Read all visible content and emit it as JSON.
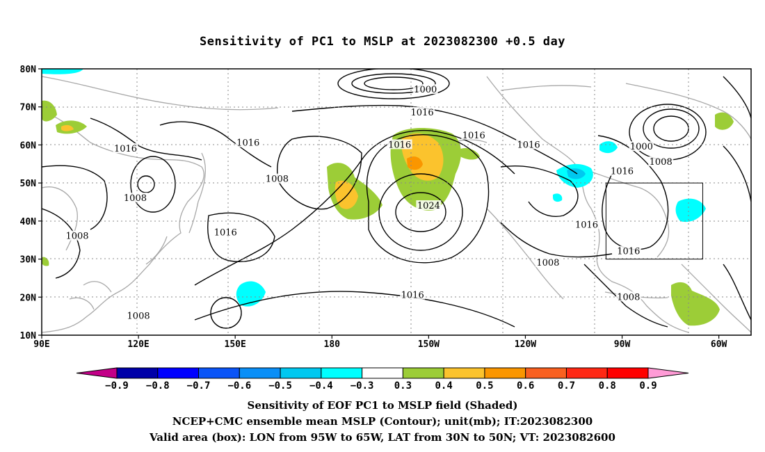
{
  "title": "Sensitivity of PC1 to MSLP at 2023082300 +0.5 day",
  "lat_labels": [
    "80N",
    "70N",
    "60N",
    "50N",
    "40N",
    "30N",
    "20N",
    "10N"
  ],
  "lon_labels": [
    "90E",
    "120E",
    "150E",
    "180",
    "150W",
    "120W",
    "90W",
    "60W"
  ],
  "contour_labels": [
    {
      "text": "1000",
      "lon": -151,
      "lat": 74.5
    },
    {
      "text": "1016",
      "lon": -152,
      "lat": 68.5
    },
    {
      "text": "1016",
      "lon": -136,
      "lat": 62.5
    },
    {
      "text": "1016",
      "lon": -159,
      "lat": 60
    },
    {
      "text": "1016",
      "lon": -119,
      "lat": 60
    },
    {
      "text": "1000",
      "lon": -84,
      "lat": 59.5
    },
    {
      "text": "1008",
      "lon": -78,
      "lat": 55.5
    },
    {
      "text": "1016",
      "lon": -90,
      "lat": 53
    },
    {
      "text": "1016",
      "lon": 116,
      "lat": 59
    },
    {
      "text": "1016",
      "lon": 154,
      "lat": 60.5
    },
    {
      "text": "1008",
      "lon": 163,
      "lat": 51
    },
    {
      "text": "1008",
      "lon": 119,
      "lat": 46
    },
    {
      "text": "1024",
      "lon": -150,
      "lat": 44
    },
    {
      "text": "1016",
      "lon": -101,
      "lat": 39
    },
    {
      "text": "1016",
      "lon": 147,
      "lat": 37
    },
    {
      "text": "1008",
      "lon": 101,
      "lat": 36
    },
    {
      "text": "1016",
      "lon": -88,
      "lat": 32
    },
    {
      "text": "1008",
      "lon": -113,
      "lat": 29
    },
    {
      "text": "1016",
      "lon": -155,
      "lat": 20.5
    },
    {
      "text": "1008",
      "lon": -88,
      "lat": 20
    },
    {
      "text": "1008",
      "lon": 120,
      "lat": 15
    }
  ],
  "valid_box": {
    "lon_min": -95,
    "lon_max": -65,
    "lat_min": 30,
    "lat_max": 50
  },
  "colorbar": {
    "labels": [
      "-0.9",
      "-0.8",
      "-0.7",
      "-0.6",
      "-0.5",
      "-0.4",
      "-0.3",
      "0.3",
      "0.4",
      "0.5",
      "0.6",
      "0.7",
      "0.8",
      "0.9"
    ],
    "colors": [
      "#c30088",
      "#0000a8",
      "#0000ff",
      "#0a54f7",
      "#0a8ff7",
      "#00c8f0",
      "#00ffff",
      "#ffffff",
      "#9ccd37",
      "#fbc32d",
      "#fa9600",
      "#f96020",
      "#ff2814",
      "#ff0000",
      "#ff9bd6"
    ]
  },
  "captions": [
    "Sensitivity of EOF PC1 to MSLP field (Shaded)",
    "NCEP+CMC ensemble mean MSLP (Contour); unit(mb); IT:2023082300",
    "Valid area (box): LON from 95W to 65W, LAT from 30N to 50N; VT: 2023082600"
  ]
}
